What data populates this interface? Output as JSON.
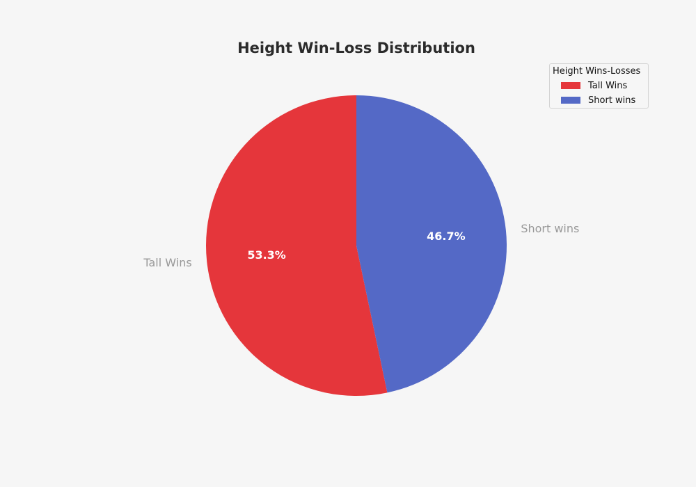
{
  "chart_data": {
    "type": "pie",
    "title": "Height Win-Loss Distribution",
    "categories": [
      "Tall Wins",
      "Short wins"
    ],
    "values": [
      53.3,
      46.7
    ],
    "value_labels": [
      "53.3%",
      "46.7%"
    ],
    "colors": [
      "#e5363b",
      "#5469c6"
    ],
    "start_angle": 90,
    "direction": "counterclockwise",
    "legend": {
      "title": "Height Wins-Losses",
      "placement": "top-right",
      "entries": [
        "Tall Wins",
        "Short wins"
      ]
    }
  }
}
